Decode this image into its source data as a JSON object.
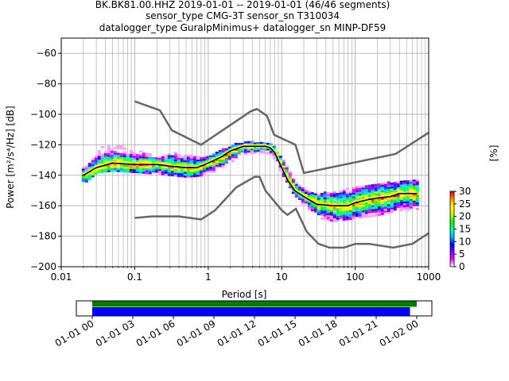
{
  "title": {
    "line1": "BK.BK81.00.HHZ   2019-01-01 -- 2019-01-01  (46/46 segments)",
    "line2": "sensor_type CMG-3T sensor_sn T310034",
    "line3": "datalogger_type GuralpMinimus+ datalogger_sn MINP-DF59"
  },
  "colors": {
    "nlnm_nhnm": "#666666",
    "mode_line": "#000000",
    "mean_line": "#ffff00",
    "grid": "#b0b0b0",
    "coverage_data": "#008000",
    "coverage_used": "#0000ff"
  },
  "chart_data": [
    {
      "type": "heatmap",
      "xlabel": "Period [s]",
      "ylabel": "Power [m²/s⁴/Hz] [dB]",
      "xscale": "log",
      "xlim": [
        0.01,
        1000
      ],
      "ylim": [
        -200,
        -50
      ],
      "x_ticks": [
        0.01,
        0.1,
        1,
        10,
        100,
        1000
      ],
      "x_tick_labels": [
        "0.01",
        "0.1",
        "1",
        "10",
        "100",
        "1000"
      ],
      "y_ticks": [
        -200,
        -180,
        -160,
        -140,
        -120,
        -100,
        -80,
        -60
      ],
      "y_tick_labels": [
        "−200",
        "−180",
        "−160",
        "−140",
        "−120",
        "−100",
        "−80",
        "−60"
      ],
      "grid": true,
      "colorbar": {
        "label": "[%]",
        "min": 0,
        "max": 30,
        "ticks": [
          0,
          5,
          10,
          15,
          20,
          25,
          30
        ],
        "tick_labels": [
          "0",
          "5",
          "10",
          "15",
          "20",
          "25",
          "30"
        ],
        "colormap": [
          "#ffffff",
          "#ff00ff",
          "#8000ff",
          "#0000ff",
          "#00c0ff",
          "#00ffc0",
          "#00ff00",
          "#c0ff00",
          "#ffff00",
          "#ffa000",
          "#ff0000"
        ]
      },
      "noise_models": {
        "NHNM": {
          "period": [
            0.1,
            0.22,
            0.32,
            0.8,
            3.8,
            4.6,
            6.3,
            7.9,
            15.4,
            20,
            354.8,
            1000
          ],
          "db": [
            -91.5,
            -97.4,
            -110.5,
            -120,
            -98,
            -96.5,
            -101,
            -113.5,
            -120,
            -138.5,
            -126,
            -112
          ]
        },
        "NLNM": {
          "period": [
            0.1,
            0.17,
            0.4,
            0.8,
            1.24,
            2.4,
            4.3,
            5,
            6,
            10,
            12,
            15.6,
            21.9,
            31.6,
            45,
            70,
            101,
            154,
            328,
            600,
            1000
          ],
          "db": [
            -168,
            -167,
            -167,
            -169,
            -163,
            -148,
            -141,
            -141,
            -150,
            -163,
            -166,
            -162,
            -177,
            -185,
            -187.5,
            -187.5,
            -185,
            -185,
            -187.5,
            -185,
            -178
          ]
        }
      },
      "series": [
        {
          "name": "mode",
          "period": [
            0.02,
            0.03,
            0.05,
            0.1,
            0.2,
            0.3,
            0.5,
            0.7,
            1,
            1.5,
            2,
            3,
            4,
            5,
            6,
            7,
            8,
            10,
            12,
            15,
            20,
            30,
            50,
            80,
            100,
            150,
            200,
            300,
            400,
            700
          ],
          "db": [
            -140,
            -135,
            -132,
            -133,
            -133,
            -134,
            -135,
            -135,
            -132,
            -128,
            -124,
            -121,
            -121,
            -121,
            -121,
            -122,
            -125,
            -135,
            -143,
            -150,
            -154,
            -159,
            -160,
            -160,
            -158,
            -156,
            -155,
            -154,
            -152,
            -152
          ]
        }
      ],
      "psd_density_cells": [
        {
          "period": 0.02,
          "db": [
            -145,
            -135
          ],
          "pct": 5
        },
        {
          "period": 0.03,
          "db": [
            -138,
            -122
          ],
          "pct": 5
        },
        {
          "period": 0.05,
          "db": [
            -137,
            -120
          ],
          "pct": 5
        },
        {
          "period": 0.1,
          "db": [
            -138,
            -123
          ],
          "pct": 4
        },
        {
          "period": 0.2,
          "db": [
            -139,
            -128
          ],
          "pct": 4
        },
        {
          "period": 0.3,
          "db": [
            -140,
            -125
          ],
          "pct": 3
        },
        {
          "period": 0.5,
          "db": [
            -141,
            -126
          ],
          "pct": 3
        },
        {
          "period": 0.8,
          "db": [
            -140,
            -128
          ],
          "pct": 3
        },
        {
          "period": 1,
          "db": [
            -139,
            -127
          ],
          "pct": 4
        },
        {
          "period": 2,
          "db": [
            -131,
            -120
          ],
          "pct": 5
        },
        {
          "period": 3,
          "db": [
            -126,
            -118
          ],
          "pct": 6
        },
        {
          "period": 5,
          "db": [
            -125,
            -118
          ],
          "pct": 7
        },
        {
          "period": 7,
          "db": [
            -126,
            -119
          ],
          "pct": 7
        },
        {
          "period": 10,
          "db": [
            -140,
            -130
          ],
          "pct": 8
        },
        {
          "period": 15,
          "db": [
            -155,
            -145
          ],
          "pct": 10
        },
        {
          "period": 20,
          "db": [
            -160,
            -150
          ],
          "pct": 8
        },
        {
          "period": 30,
          "db": [
            -168,
            -152
          ],
          "pct": 4
        },
        {
          "period": 50,
          "db": [
            -170,
            -150
          ],
          "pct": 3
        },
        {
          "period": 100,
          "db": [
            -168,
            -148
          ],
          "pct": 3
        },
        {
          "period": 200,
          "db": [
            -166,
            -145
          ],
          "pct": 3
        },
        {
          "period": 400,
          "db": [
            -163,
            -144
          ],
          "pct": 3
        },
        {
          "period": 700,
          "db": [
            -162,
            -143
          ],
          "pct": 3
        }
      ]
    },
    {
      "type": "bar",
      "title": "",
      "x_tick_labels": [
        "01-01 00",
        "01-01 03",
        "01-01 06",
        "01-01 09",
        "01-01 12",
        "01-01 15",
        "01-01 18",
        "01-01 21",
        "01-02 00"
      ],
      "series": [
        {
          "name": "",
          "start_hour": 0,
          "end_hour": 24
        },
        {
          "name": "",
          "start_hour": 0,
          "end_hour": 23.5
        }
      ]
    }
  ]
}
